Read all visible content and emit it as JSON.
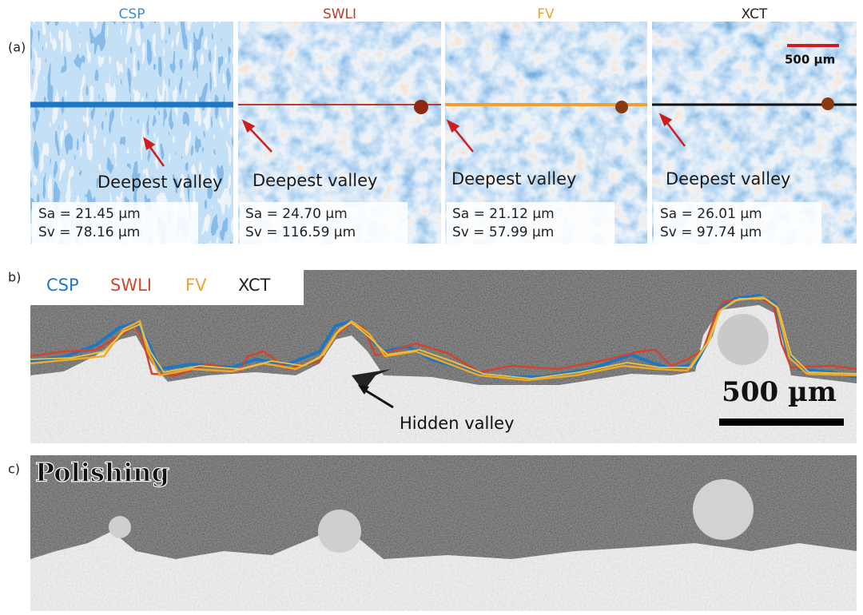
{
  "panel_a": {
    "label": "(a)",
    "scale_bar": "500 µm",
    "panels": [
      {
        "title": "CSP",
        "annotation": "Deepest valley",
        "sa": "Sa = 21.45 µm",
        "sv": "Sv = 78.16 µm"
      },
      {
        "title": "SWLI",
        "annotation": "Deepest valley",
        "sa": "Sa = 24.70 µm",
        "sv": "Sv = 116.59 µm"
      },
      {
        "title": "FV",
        "annotation": "Deepest valley",
        "sa": "Sa = 21.12 µm",
        "sv": "Sv = 57.99 µm"
      },
      {
        "title": "XCT",
        "annotation": "Deepest valley",
        "sa": "Sa = 26.01 µm",
        "sv": "Sv = 97.74 µm"
      }
    ]
  },
  "panel_b": {
    "label": "b)",
    "legend": [
      "CSP",
      "SWLI",
      "FV",
      "XCT"
    ],
    "annotation": "Hidden valley",
    "scale_bar": "500 µm"
  },
  "panel_c": {
    "label": "c)",
    "title": "Polishing"
  }
}
